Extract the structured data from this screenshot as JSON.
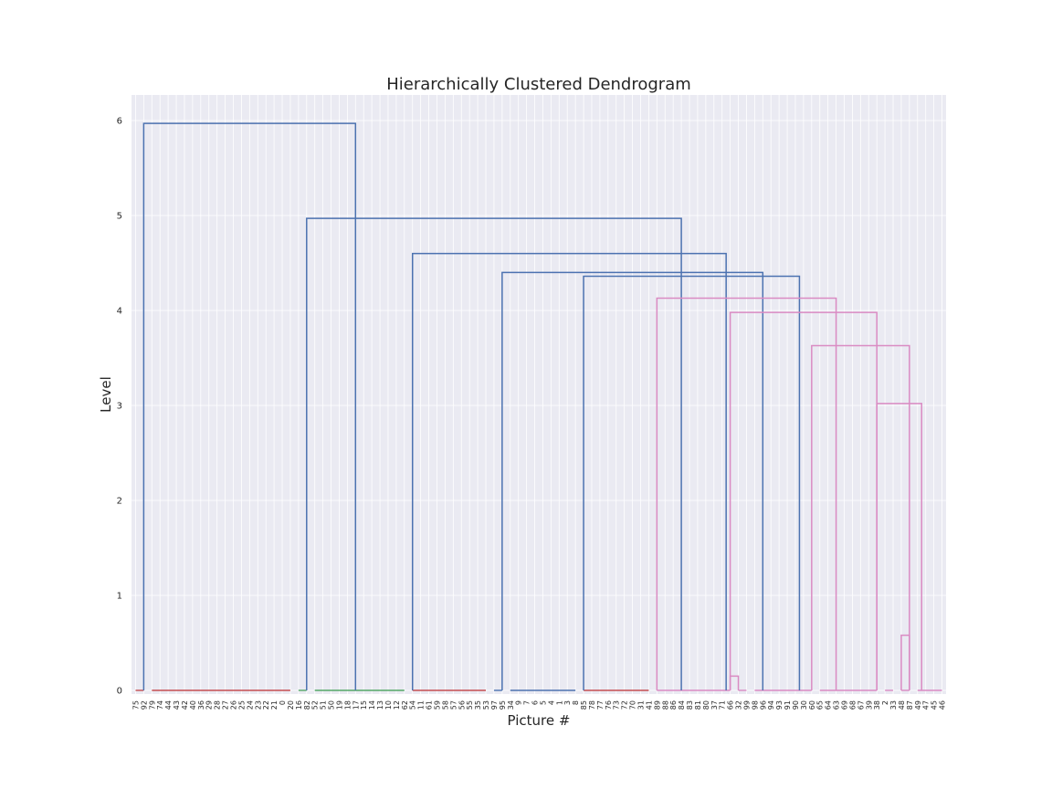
{
  "chart_data": {
    "type": "dendrogram",
    "title": "Hierarchically Clustered Dendrogram",
    "xlabel": "Picture #",
    "ylabel": "Level",
    "ylim": [
      0,
      6.2
    ],
    "yticks": [
      0,
      1,
      2,
      3,
      4,
      5,
      6
    ],
    "grid": true,
    "leaves": [
      "75",
      "92",
      "79",
      "74",
      "44",
      "43",
      "42",
      "40",
      "36",
      "29",
      "28",
      "27",
      "26",
      "25",
      "24",
      "23",
      "22",
      "21",
      "0",
      "20",
      "16",
      "82",
      "52",
      "51",
      "50",
      "19",
      "18",
      "17",
      "15",
      "14",
      "13",
      "10",
      "12",
      "62",
      "54",
      "11",
      "61",
      "59",
      "58",
      "57",
      "56",
      "55",
      "35",
      "53",
      "97",
      "95",
      "34",
      "9",
      "7",
      "6",
      "5",
      "4",
      "1",
      "3",
      "8",
      "85",
      "78",
      "77",
      "76",
      "73",
      "72",
      "70",
      "31",
      "41",
      "89",
      "88",
      "86",
      "84",
      "83",
      "81",
      "80",
      "37",
      "71",
      "66",
      "32",
      "99",
      "98",
      "96",
      "94",
      "93",
      "91",
      "90",
      "30",
      "60",
      "65",
      "64",
      "63",
      "69",
      "68",
      "67",
      "39",
      "38",
      "2",
      "33",
      "48",
      "87",
      "49",
      "47",
      "45",
      "46"
    ],
    "colors": {
      "red": "#c44e52",
      "green": "#55a868",
      "blue": "#4c72b0",
      "pink": "#da8bc3",
      "background": "#eaeaf2",
      "grid": "#ffffff"
    },
    "clusters": [
      {
        "leaves": [
          "75",
          "92"
        ],
        "color": "red"
      },
      {
        "leaves": [
          "79",
          "74",
          "44",
          "43",
          "42",
          "40",
          "36",
          "29",
          "28",
          "27",
          "26",
          "25",
          "24",
          "23",
          "22",
          "21",
          "0",
          "20"
        ],
        "color": "red"
      },
      {
        "leaves": [
          "16",
          "82"
        ],
        "color": "green"
      },
      {
        "leaves": [
          "52",
          "51",
          "50",
          "19",
          "18",
          "17",
          "15",
          "14",
          "13",
          "10",
          "12",
          "62"
        ],
        "color": "green"
      },
      {
        "leaves": [
          "54",
          "11",
          "61",
          "59",
          "58",
          "57",
          "56",
          "55",
          "35",
          "53"
        ],
        "color": "red"
      },
      {
        "leaves": [
          "97",
          "95"
        ],
        "color": "blue"
      },
      {
        "leaves": [
          "34",
          "9",
          "7",
          "6",
          "5",
          "4",
          "1",
          "3",
          "8"
        ],
        "color": "blue"
      },
      {
        "leaves": [
          "85",
          "78",
          "77",
          "76",
          "73",
          "72",
          "70",
          "31",
          "41"
        ],
        "color": "red"
      },
      {
        "leaves": [
          "89",
          "88",
          "86",
          "84",
          "83",
          "81",
          "80",
          "37",
          "71",
          "66"
        ],
        "color": "pink"
      },
      {
        "leaves": [
          "32",
          "99"
        ],
        "color": "pink"
      },
      {
        "leaves": [
          "98",
          "96",
          "94",
          "93",
          "91",
          "90",
          "30",
          "60"
        ],
        "color": "pink"
      },
      {
        "leaves": [
          "65",
          "64",
          "63",
          "69",
          "68",
          "67",
          "39",
          "38"
        ],
        "color": "pink"
      },
      {
        "leaves": [
          "2",
          "33"
        ],
        "color": "pink"
      },
      {
        "leaves": [
          "48",
          "87"
        ],
        "color": "pink"
      },
      {
        "leaves": [
          "49",
          "47",
          "45",
          "46"
        ],
        "color": "pink"
      }
    ],
    "merges": [
      {
        "leftLo": 1,
        "leftHi": 1,
        "rightLo": 21,
        "rightHi": 33,
        "height": 5.97,
        "color": "blue",
        "leftBottom": 0,
        "rightBottom": 0
      },
      {
        "leftLo": 21,
        "leftHi": 21,
        "rightLo": 35,
        "rightHi": 99,
        "height": 4.97,
        "color": "blue",
        "leftBottom": 0,
        "rightBottom": 0
      },
      {
        "leftLo": 34,
        "leftHi": 34,
        "rightLo": 46,
        "rightHi": 99,
        "height": 4.6,
        "color": "blue",
        "leftBottom": 0,
        "rightBottom": 0
      },
      {
        "leftLo": 45,
        "leftHi": 45,
        "rightLo": 55,
        "rightHi": 99,
        "height": 4.4,
        "color": "blue",
        "leftBottom": 0,
        "rightBottom": 0
      },
      {
        "leftLo": 55,
        "leftHi": 55,
        "rightLo": 64,
        "rightHi": 99,
        "height": 4.36,
        "color": "blue",
        "leftBottom": 0,
        "rightBottom": 0
      },
      {
        "leftLo": 64,
        "leftHi": 64,
        "rightLo": 73,
        "rightHi": 99,
        "height": 4.13,
        "color": "pink",
        "leftBottom": 0,
        "rightBottom": 0
      },
      {
        "leftLo": 73,
        "leftHi": 73,
        "rightLo": 83,
        "rightHi": 99,
        "height": 3.98,
        "color": "pink",
        "leftBottom": 0,
        "rightBottom": 0
      },
      {
        "leftLo": 83,
        "leftHi": 83,
        "rightLo": 91,
        "rightHi": 99,
        "height": 3.63,
        "color": "pink",
        "leftBottom": 0,
        "rightBottom": 0
      },
      {
        "leftLo": 91,
        "leftHi": 91,
        "rightLo": 94,
        "rightHi": 99,
        "height": 3.02,
        "color": "pink",
        "leftBottom": 0,
        "rightBottom": 0
      },
      {
        "leftLo": 94,
        "leftHi": 94,
        "rightLo": 95,
        "rightHi": 95,
        "height": 0.58,
        "color": "pink",
        "leftBottom": 0,
        "rightBottom": 0
      },
      {
        "leftLo": 73,
        "leftHi": 73,
        "rightLo": 74,
        "rightHi": 74,
        "height": 0.15,
        "color": "pink",
        "leftBottom": 0,
        "rightBottom": 0
      }
    ]
  }
}
